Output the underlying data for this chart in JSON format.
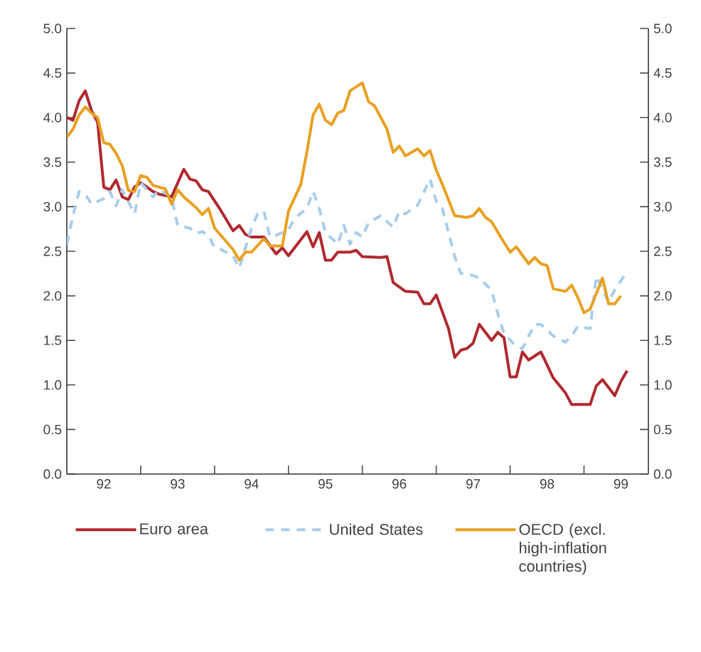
{
  "chart_data": {
    "type": "line",
    "xlim": [
      "1992-01",
      "1999-11-15"
    ],
    "ylim": [
      0,
      5
    ],
    "y2lim": [
      0,
      5
    ],
    "xticks": [
      {
        "value": "1992-07",
        "label": "92"
      },
      {
        "value": "1993-07",
        "label": "93"
      },
      {
        "value": "1994-07",
        "label": "94"
      },
      {
        "value": "1995-07",
        "label": "95"
      },
      {
        "value": "1996-07",
        "label": "96"
      },
      {
        "value": "1997-07",
        "label": "97"
      },
      {
        "value": "1998-07",
        "label": "98"
      },
      {
        "value": "1999-07",
        "label": "99"
      },
      {
        "value": "1993",
        "label": null
      },
      {
        "value": "1994",
        "label": null
      },
      {
        "value": "1995",
        "label": null
      },
      {
        "value": "1996",
        "label": null
      },
      {
        "value": "1997",
        "label": null
      },
      {
        "value": "1998",
        "label": null
      },
      {
        "value": "1999",
        "label": null
      }
    ],
    "yticks": [
      {
        "value": 0,
        "label": "0.0"
      },
      {
        "value": 0.5,
        "label": "0.5"
      },
      {
        "value": 1,
        "label": "1.0"
      },
      {
        "value": 1.5,
        "label": "1.5"
      },
      {
        "value": 2,
        "label": "2.0"
      },
      {
        "value": 2.5,
        "label": "2.5"
      },
      {
        "value": 3,
        "label": "3.0"
      },
      {
        "value": 3.5,
        "label": "3.5"
      },
      {
        "value": 4,
        "label": "4.0"
      },
      {
        "value": 4.5,
        "label": "4.5"
      },
      {
        "value": 5,
        "label": "5.0"
      }
    ],
    "y2ticks": [
      {
        "value": 0,
        "label": "0.0"
      },
      {
        "value": 0.5,
        "label": "0.5"
      },
      {
        "value": 1,
        "label": "1.0"
      },
      {
        "value": 1.5,
        "label": "1.5"
      },
      {
        "value": 2,
        "label": "2.0"
      },
      {
        "value": 2.5,
        "label": "2.5"
      },
      {
        "value": 3,
        "label": "3.0"
      },
      {
        "value": 3.5,
        "label": "3.5"
      },
      {
        "value": 4,
        "label": "4.0"
      },
      {
        "value": 4.5,
        "label": "4.5"
      },
      {
        "value": 5,
        "label": "5.0"
      }
    ],
    "grid": false,
    "legend": "bottom",
    "marker": "none",
    "series": [
      {
        "name": "Euro area",
        "color": "#b0282e",
        "line_style": "solid",
        "x": [
          "1992-01",
          "1992-02",
          "1992-03",
          "1992-04",
          "1992-05",
          "1992-06",
          "1992-07",
          "1992-08",
          "1992-09",
          "1992-10",
          "1992-11",
          "1992-12",
          "1993-01",
          "1993-03",
          "1993-04",
          "1993-06",
          "1993-08",
          "1993-09",
          "1993-10",
          "1993-11",
          "1993-12",
          "1994-02",
          "1994-04",
          "1994-05",
          "1994-06",
          "1994-07",
          "1994-09",
          "1994-11",
          "1994-12",
          "1995-01",
          "1995-04",
          "1995-05",
          "1995-06",
          "1995-07",
          "1995-08",
          "1995-09",
          "1995-11",
          "1995-12",
          "1996-01",
          "1996-04",
          "1996-05",
          "1996-06",
          "1996-08",
          "1996-10",
          "1996-11",
          "1996-12",
          "1997-01",
          "1997-03",
          "1997-04",
          "1997-05",
          "1997-06",
          "1997-07",
          "1997-08",
          "1997-10",
          "1997-11",
          "1997-12",
          "1998-01",
          "1998-02",
          "1998-03",
          "1998-04",
          "1998-06",
          "1998-08",
          "1998-10",
          "1998-11",
          "1999-02",
          "1999-03",
          "1999-04",
          "1999-06",
          "1999-07",
          "1999-08"
        ],
        "values": [
          4.0,
          3.97,
          4.19,
          4.3,
          4.08,
          3.95,
          3.22,
          3.19,
          3.3,
          3.11,
          3.08,
          3.22,
          3.27,
          3.17,
          3.14,
          3.11,
          3.42,
          3.31,
          3.29,
          3.19,
          3.17,
          2.96,
          2.73,
          2.79,
          2.69,
          2.66,
          2.66,
          2.47,
          2.54,
          2.45,
          2.72,
          2.55,
          2.71,
          2.4,
          2.4,
          2.49,
          2.49,
          2.51,
          2.44,
          2.43,
          2.44,
          2.15,
          2.05,
          2.04,
          1.91,
          1.91,
          2.01,
          1.63,
          1.31,
          1.39,
          1.41,
          1.47,
          1.68,
          1.5,
          1.59,
          1.53,
          1.09,
          1.09,
          1.37,
          1.28,
          1.37,
          1.08,
          0.91,
          0.78,
          0.78,
          0.99,
          1.06,
          0.88,
          1.04,
          1.16
        ]
      },
      {
        "name": "United States",
        "color": "#a8cdec",
        "line_style": "dashed",
        "x": [
          "1992-01",
          "1992-02",
          "1992-03",
          "1992-04",
          "1992-05",
          "1992-07",
          "1992-08",
          "1992-09",
          "1992-10",
          "1992-12",
          "1993-01",
          "1993-03",
          "1993-04",
          "1993-06",
          "1993-07",
          "1993-09",
          "1993-10",
          "1993-11",
          "1993-12",
          "1994-01",
          "1994-02",
          "1994-04",
          "1994-05",
          "1994-07",
          "1994-08",
          "1994-09",
          "1994-10",
          "1994-11",
          "1995-01",
          "1995-02",
          "1995-04",
          "1995-05",
          "1995-06",
          "1995-07",
          "1995-09",
          "1995-10",
          "1995-11",
          "1995-12",
          "1996-01",
          "1996-02",
          "1996-04",
          "1996-06",
          "1996-07",
          "1996-08",
          "1996-10",
          "1996-12",
          "1997-01",
          "1997-02",
          "1997-04",
          "1997-05",
          "1997-06",
          "1997-08",
          "1997-10",
          "1997-11",
          "1997-12",
          "1998-02",
          "1998-03",
          "1998-05",
          "1998-06",
          "1998-08",
          "1998-10",
          "1998-11",
          "1998-12",
          "1999-02",
          "1999-03",
          "1999-05",
          "1999-06",
          "1999-08"
        ],
        "values": [
          2.58,
          2.9,
          3.17,
          3.14,
          3.03,
          3.09,
          3.17,
          3.01,
          3.19,
          2.92,
          3.27,
          3.11,
          3.19,
          3.11,
          2.79,
          2.76,
          2.7,
          2.72,
          2.68,
          2.54,
          2.52,
          2.45,
          2.31,
          2.76,
          2.92,
          2.95,
          2.66,
          2.68,
          2.74,
          2.87,
          2.98,
          3.17,
          2.98,
          2.71,
          2.58,
          2.79,
          2.58,
          2.71,
          2.66,
          2.82,
          2.9,
          2.77,
          2.95,
          2.92,
          3.02,
          3.31,
          3.06,
          2.98,
          2.44,
          2.25,
          2.25,
          2.2,
          2.06,
          1.8,
          1.58,
          1.43,
          1.41,
          1.68,
          1.68,
          1.55,
          1.48,
          1.55,
          1.66,
          1.63,
          2.22,
          1.93,
          2.07,
          2.27
        ]
      },
      {
        "name": "OECD (excl. high-inflation countries)",
        "color": "#e8a020",
        "line_style": "solid",
        "x": [
          "1992-01",
          "1992-02",
          "1992-03",
          "1992-04",
          "1992-05",
          "1992-06",
          "1992-07",
          "1992-08",
          "1992-09",
          "1992-10",
          "1992-11",
          "1992-12",
          "1993-01",
          "1993-02",
          "1993-03",
          "1993-05",
          "1993-06",
          "1993-07",
          "1993-08",
          "1993-10",
          "1993-11",
          "1993-12",
          "1994-01",
          "1994-02",
          "1994-04",
          "1994-05",
          "1994-06",
          "1994-07",
          "1994-09",
          "1994-10",
          "1994-12",
          "1995-01",
          "1995-03",
          "1995-04",
          "1995-05",
          "1995-06",
          "1995-07",
          "1995-08",
          "1995-09",
          "1995-10",
          "1995-11",
          "1996-01",
          "1996-02",
          "1996-03",
          "1996-05",
          "1996-06",
          "1996-07",
          "1996-08",
          "1996-10",
          "1996-11",
          "1996-12",
          "1997-01",
          "1997-02",
          "1997-04",
          "1997-06",
          "1997-07",
          "1997-08",
          "1997-09",
          "1997-10",
          "1997-12",
          "1998-01",
          "1998-02",
          "1998-04",
          "1998-05",
          "1998-06",
          "1998-07",
          "1998-08",
          "1998-10",
          "1998-11",
          "1998-12",
          "1999-01",
          "1999-02",
          "1999-04",
          "1999-05",
          "1999-06",
          "1999-07"
        ],
        "values": [
          3.78,
          3.87,
          4.03,
          4.12,
          4.05,
          4.0,
          3.72,
          3.7,
          3.6,
          3.46,
          3.18,
          3.17,
          3.35,
          3.33,
          3.24,
          3.2,
          3.03,
          3.19,
          3.11,
          2.99,
          2.91,
          2.98,
          2.76,
          2.68,
          2.52,
          2.4,
          2.49,
          2.49,
          2.64,
          2.56,
          2.56,
          2.95,
          3.25,
          3.62,
          4.03,
          4.15,
          3.97,
          3.92,
          4.05,
          4.08,
          4.3,
          4.39,
          4.18,
          4.13,
          3.87,
          3.61,
          3.68,
          3.57,
          3.65,
          3.57,
          3.63,
          3.41,
          3.25,
          2.9,
          2.88,
          2.9,
          2.98,
          2.88,
          2.83,
          2.6,
          2.49,
          2.55,
          2.36,
          2.43,
          2.36,
          2.34,
          2.08,
          2.05,
          2.12,
          1.98,
          1.81,
          1.85,
          2.2,
          1.91,
          1.91,
          2.0
        ]
      }
    ]
  }
}
